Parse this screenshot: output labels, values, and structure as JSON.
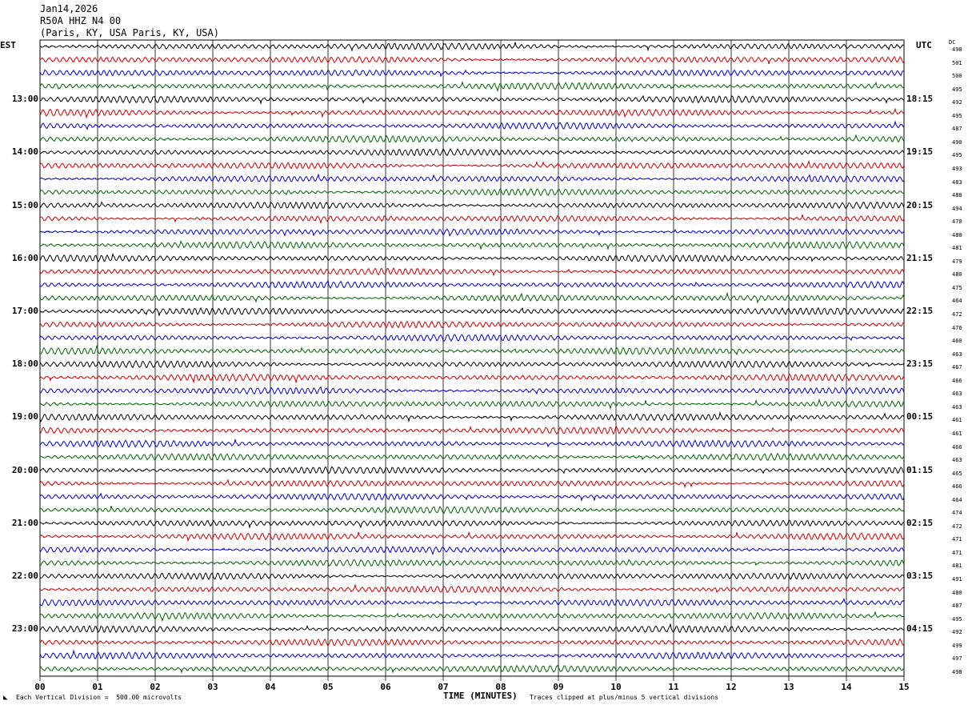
{
  "header": {
    "date": "Jan14,2026",
    "station": "R50A HHZ N4 00",
    "location": "(Paris, KY, USA Paris, KY, USA)"
  },
  "left_tz": "EST",
  "right_tz": "UTC",
  "dc_label": "DC",
  "chart_data": {
    "type": "line",
    "title": "",
    "xlabel": "TIME (MINUTES)",
    "xlim": [
      0,
      15
    ],
    "x_ticks": [
      "00",
      "01",
      "02",
      "03",
      "04",
      "05",
      "06",
      "07",
      "08",
      "09",
      "10",
      "11",
      "12",
      "13",
      "14",
      "15"
    ],
    "rows_per_hour": 4,
    "trace_colors": [
      "#000000",
      "#cc0000",
      "#0000cc",
      "#006400"
    ],
    "hour_labels_left": [
      "13:00",
      "14:00",
      "15:00",
      "16:00",
      "17:00",
      "18:00",
      "19:00",
      "20:00",
      "21:00",
      "22:00",
      "23:00"
    ],
    "hour_labels_right": [
      "18:15",
      "19:15",
      "20:15",
      "21:15",
      "22:15",
      "23:15",
      "00:15",
      "01:15",
      "02:15",
      "03:15",
      "04:15"
    ],
    "dc_offsets": [
      498,
      501,
      500,
      495,
      492,
      495,
      487,
      490,
      495,
      493,
      483,
      488,
      494,
      470,
      480,
      481,
      479,
      480,
      475,
      464,
      472,
      476,
      460,
      463,
      467,
      466,
      463,
      463,
      461,
      461,
      466,
      463,
      465,
      466,
      464,
      474,
      472,
      471,
      471,
      481,
      491,
      480,
      487,
      495,
      492,
      499,
      497,
      498
    ],
    "scale_note": "Each Vertical Division =  500.00 microvolts",
    "clip_note": "Traces clipped at plus/minus 5 vertical divisions"
  }
}
